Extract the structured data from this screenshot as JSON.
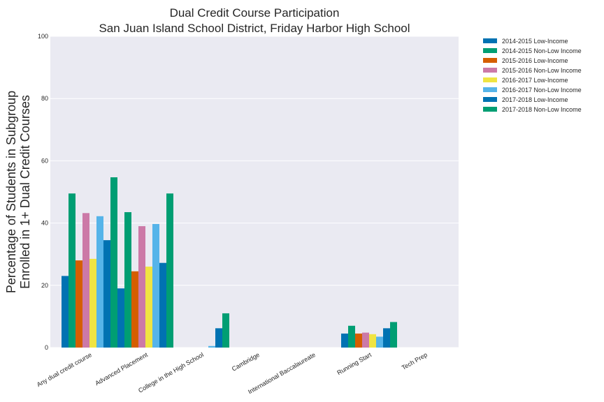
{
  "chart_data": {
    "type": "bar",
    "title": [
      "Dual Credit Course Participation",
      "San Juan Island School District, Friday Harbor High School"
    ],
    "ylabel": [
      "Percentage of Students in Subgroup",
      "Enrolled in 1+ Dual Credit Courses"
    ],
    "xlabel": "",
    "ylim": [
      0,
      100
    ],
    "yticks": [
      0,
      20,
      40,
      60,
      80,
      100
    ],
    "grid": true,
    "legend_position": "outside-top-right",
    "categories": [
      "Any dual credit course",
      "Advanced Placement",
      "College in the High School",
      "Cambridge",
      "International Baccalaureate",
      "Running Start",
      "Tech Prep"
    ],
    "series": [
      {
        "name": "2014-2015 Low-Income",
        "color": "#0072b2",
        "values": [
          23,
          19,
          0,
          0,
          0,
          4.5,
          0
        ]
      },
      {
        "name": "2014-2015 Non-Low Income",
        "color": "#009e73",
        "values": [
          49.5,
          43.5,
          0,
          0,
          0,
          7,
          0
        ]
      },
      {
        "name": "2015-2016 Low-Income",
        "color": "#d55e00",
        "values": [
          28,
          24.5,
          0,
          0,
          0,
          4.5,
          0
        ]
      },
      {
        "name": "2015-2016 Non-Low Income",
        "color": "#cc79a7",
        "values": [
          43.2,
          39,
          0,
          0,
          0,
          4.8,
          0
        ]
      },
      {
        "name": "2016-2017 Low-Income",
        "color": "#f0e442",
        "values": [
          28.5,
          26,
          0,
          0,
          0,
          4.3,
          0
        ]
      },
      {
        "name": "2016-2017 Non-Low Income",
        "color": "#56b4e9",
        "values": [
          42.2,
          39.7,
          0.5,
          0,
          0,
          3.5,
          0
        ]
      },
      {
        "name": "2017-2018 Low-Income",
        "color": "#0072b2",
        "values": [
          34.5,
          27.2,
          6.2,
          0,
          0,
          6.2,
          0
        ]
      },
      {
        "name": "2017-2018 Non-Low Income",
        "color": "#009e73",
        "values": [
          54.7,
          49.5,
          11,
          0,
          0,
          8.2,
          0
        ]
      }
    ]
  }
}
